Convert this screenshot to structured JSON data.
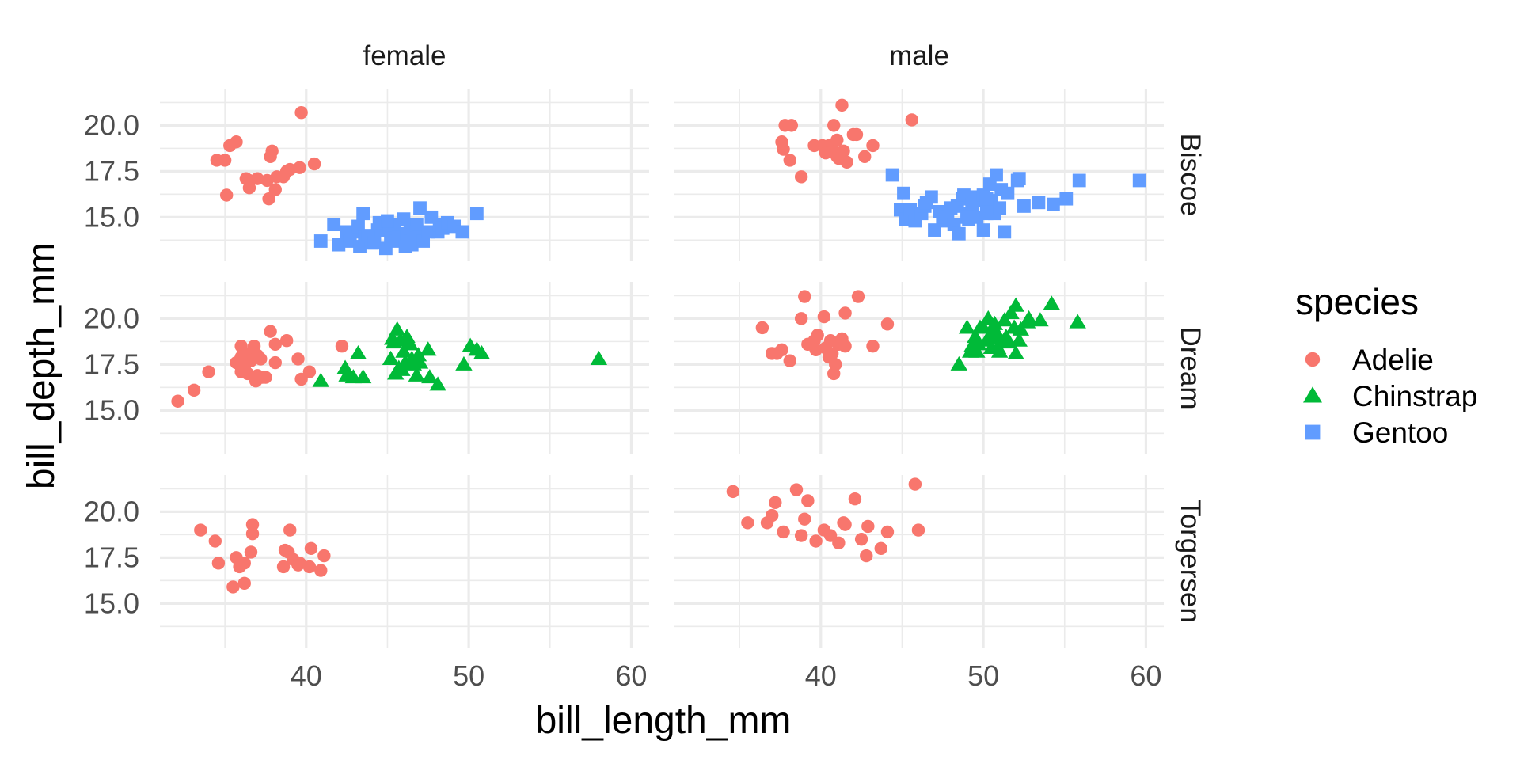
{
  "chart_data": {
    "type": "scatter",
    "xlabel": "bill_length_mm",
    "ylabel": "bill_depth_mm",
    "xlim": [
      31.0,
      61.1
    ],
    "ylim": [
      12.6,
      22.0
    ],
    "x_ticks": [
      40,
      50,
      60
    ],
    "y_ticks": [
      15.0,
      17.5,
      20.0
    ],
    "y_tick_labels": [
      "15.0",
      "17.5",
      "20.0"
    ],
    "column_facets": [
      "female",
      "male"
    ],
    "row_facets": [
      "Biscoe",
      "Dream",
      "Torgersen"
    ],
    "grid": true,
    "legend": {
      "title": "species",
      "placement": "right",
      "entries": [
        {
          "name": "Adelie",
          "color": "#F8766D",
          "shape": "circle"
        },
        {
          "name": "Chinstrap",
          "color": "#00BA38",
          "shape": "triangle"
        },
        {
          "name": "Gentoo",
          "color": "#619CFF",
          "shape": "square"
        }
      ]
    },
    "series": [
      {
        "species": "Adelie",
        "facet_col": "female",
        "facet_row": "Biscoe",
        "x": [
          35.0,
          35.3,
          35.7,
          36.3,
          36.5,
          36.5,
          37.0,
          37.6,
          37.7,
          37.8,
          37.9,
          38.1,
          38.2,
          38.6,
          38.8,
          39.0,
          39.6,
          39.7,
          40.5,
          34.5,
          35.1
        ],
        "y": [
          18.1,
          18.9,
          19.1,
          17.1,
          16.6,
          17.0,
          17.1,
          17.0,
          16.0,
          18.3,
          18.6,
          16.5,
          17.2,
          17.2,
          17.5,
          17.6,
          17.7,
          20.7,
          17.9,
          18.1,
          16.2
        ]
      },
      {
        "species": "Gentoo",
        "facet_col": "female",
        "facet_row": "Biscoe",
        "x": [
          40.9,
          41.7,
          42.0,
          42.5,
          42.7,
          42.8,
          43.2,
          43.3,
          43.5,
          43.6,
          44.0,
          44.4,
          44.5,
          44.9,
          45.1,
          45.2,
          45.3,
          45.4,
          45.5,
          45.7,
          46.1,
          46.2,
          46.4,
          46.5,
          46.6,
          46.8,
          46.9,
          47.2,
          47.5,
          47.7,
          48.1,
          48.2,
          48.4,
          48.7,
          49.1,
          49.6,
          50.5,
          43.8,
          44.2,
          45.0,
          46.0,
          47.0
        ],
        "y": [
          13.7,
          14.6,
          13.5,
          14.2,
          13.7,
          14.2,
          14.5,
          13.4,
          15.2,
          13.9,
          13.6,
          14.3,
          14.7,
          13.3,
          14.5,
          13.8,
          14.2,
          14.6,
          13.7,
          13.9,
          13.4,
          14.1,
          14.4,
          13.5,
          14.2,
          14.6,
          13.9,
          13.7,
          14.2,
          15.0,
          14.2,
          14.6,
          14.4,
          14.7,
          14.5,
          14.2,
          15.2,
          14.0,
          13.6,
          14.8,
          14.9,
          15.5
        ]
      },
      {
        "species": "Adelie",
        "facet_col": "female",
        "facet_row": "Dream",
        "x": [
          32.1,
          33.1,
          34.0,
          35.7,
          35.9,
          36.0,
          36.0,
          36.2,
          36.3,
          36.4,
          36.5,
          36.6,
          36.8,
          36.9,
          37.0,
          37.2,
          37.3,
          37.5,
          37.8,
          38.1,
          38.1,
          38.8,
          39.5,
          39.7,
          40.2,
          42.2,
          36.0,
          37.0
        ],
        "y": [
          15.5,
          16.1,
          17.1,
          17.6,
          17.5,
          18.5,
          17.1,
          17.3,
          18.1,
          17.0,
          18.0,
          17.7,
          18.5,
          16.6,
          16.9,
          17.8,
          16.8,
          16.8,
          19.3,
          18.6,
          17.6,
          18.8,
          17.8,
          16.7,
          17.1,
          18.5,
          17.9,
          18.0
        ]
      },
      {
        "species": "Chinstrap",
        "facet_col": "female",
        "facet_row": "Dream",
        "x": [
          40.9,
          42.4,
          42.5,
          42.9,
          43.2,
          43.5,
          45.2,
          45.4,
          45.5,
          45.6,
          45.7,
          45.8,
          45.9,
          46.0,
          46.1,
          46.4,
          46.5,
          46.6,
          46.8,
          46.9,
          47.0,
          47.5,
          47.6,
          48.1,
          49.7,
          50.1,
          50.5,
          50.8,
          58.0,
          46.2,
          45.3
        ],
        "y": [
          16.6,
          17.3,
          16.9,
          16.8,
          18.1,
          16.8,
          17.8,
          18.7,
          17.0,
          19.4,
          17.3,
          18.8,
          17.2,
          18.2,
          17.6,
          18.6,
          17.8,
          17.5,
          16.9,
          18.0,
          17.6,
          18.3,
          16.8,
          16.4,
          17.5,
          18.5,
          18.3,
          18.1,
          17.8,
          19.0,
          18.9
        ]
      },
      {
        "species": "Adelie",
        "facet_col": "female",
        "facet_row": "Torgersen",
        "x": [
          33.5,
          34.4,
          34.6,
          35.5,
          35.7,
          35.9,
          36.2,
          36.2,
          36.6,
          36.7,
          36.7,
          38.6,
          38.7,
          38.9,
          39.0,
          39.2,
          39.5,
          39.6,
          40.2,
          40.3,
          40.9,
          41.1
        ],
        "y": [
          19.0,
          18.4,
          17.2,
          15.9,
          17.5,
          17.0,
          16.1,
          17.2,
          17.8,
          18.8,
          19.3,
          17.0,
          17.9,
          17.8,
          19.0,
          17.4,
          17.1,
          17.2,
          17.0,
          18.0,
          16.8,
          17.6
        ]
      },
      {
        "species": "Adelie",
        "facet_col": "male",
        "facet_row": "Biscoe",
        "x": [
          37.6,
          37.7,
          37.8,
          38.2,
          38.1,
          38.8,
          39.6,
          40.1,
          40.5,
          40.6,
          40.7,
          40.8,
          41.0,
          41.1,
          41.3,
          41.4,
          41.6,
          42.0,
          42.2,
          42.7,
          43.2,
          45.6,
          41.0,
          40.3
        ],
        "y": [
          19.1,
          18.7,
          20.0,
          20.0,
          18.1,
          17.2,
          18.9,
          18.9,
          18.9,
          18.6,
          18.8,
          20.0,
          18.3,
          18.2,
          21.1,
          18.6,
          18.0,
          19.5,
          19.5,
          18.3,
          18.9,
          20.3,
          19.2,
          18.5
        ]
      },
      {
        "species": "Gentoo",
        "facet_col": "male",
        "facet_row": "Biscoe",
        "x": [
          44.4,
          44.9,
          45.1,
          45.2,
          45.5,
          45.8,
          46.2,
          46.4,
          46.8,
          47.3,
          47.5,
          47.8,
          48.2,
          48.4,
          48.5,
          48.7,
          48.8,
          49.0,
          49.1,
          49.3,
          49.5,
          49.6,
          49.8,
          50.0,
          50.0,
          50.2,
          50.4,
          50.5,
          50.7,
          50.8,
          51.1,
          51.3,
          51.5,
          52.1,
          52.2,
          52.5,
          53.4,
          54.3,
          55.1,
          55.9,
          59.6,
          46.5,
          47.0,
          48.0,
          49.0,
          50.2,
          51.0
        ],
        "y": [
          17.3,
          15.4,
          16.3,
          14.9,
          15.4,
          14.8,
          15.2,
          15.6,
          16.1,
          15.3,
          14.8,
          15.0,
          14.6,
          15.6,
          14.1,
          16.0,
          16.2,
          15.2,
          14.9,
          15.7,
          16.1,
          15.0,
          15.9,
          16.2,
          14.3,
          15.2,
          16.8,
          15.9,
          15.2,
          17.3,
          16.5,
          14.2,
          16.3,
          17.0,
          17.1,
          15.6,
          15.8,
          15.7,
          16.0,
          17.0,
          17.0,
          15.8,
          14.3,
          15.5,
          15.0,
          16.0,
          15.5
        ]
      },
      {
        "species": "Adelie",
        "facet_col": "male",
        "facet_row": "Dream",
        "x": [
          36.4,
          37.0,
          37.3,
          37.6,
          38.1,
          38.8,
          39.0,
          39.2,
          39.6,
          39.8,
          40.2,
          40.3,
          40.5,
          40.6,
          40.7,
          40.8,
          41.1,
          41.3,
          41.5,
          41.5,
          42.3,
          43.2,
          44.1,
          39.7,
          40.9
        ],
        "y": [
          19.5,
          18.1,
          18.1,
          18.3,
          17.7,
          20.0,
          21.2,
          18.6,
          18.8,
          19.1,
          20.1,
          18.4,
          17.9,
          18.8,
          18.1,
          17.0,
          18.6,
          18.9,
          18.5,
          20.3,
          21.2,
          18.5,
          19.7,
          18.3,
          17.5
        ]
      },
      {
        "species": "Chinstrap",
        "facet_col": "male",
        "facet_row": "Dream",
        "x": [
          48.5,
          49.0,
          49.2,
          49.5,
          49.6,
          49.7,
          49.8,
          50.0,
          50.2,
          50.3,
          50.4,
          50.5,
          50.6,
          50.7,
          50.8,
          50.9,
          51.0,
          51.3,
          51.4,
          51.5,
          51.7,
          51.9,
          52.0,
          52.0,
          52.2,
          52.7,
          52.8,
          53.5,
          54.2,
          55.8,
          49.3,
          50.9,
          52.3
        ],
        "y": [
          17.5,
          19.5,
          18.2,
          19.0,
          18.2,
          18.6,
          19.5,
          19.5,
          18.8,
          20.0,
          19.0,
          18.4,
          19.4,
          19.7,
          18.9,
          19.1,
          18.2,
          19.9,
          19.0,
          18.7,
          20.3,
          19.5,
          18.1,
          20.7,
          18.8,
          19.8,
          20.0,
          19.9,
          20.8,
          19.8,
          18.5,
          18.4,
          19.4
        ]
      },
      {
        "species": "Adelie",
        "facet_col": "male",
        "facet_row": "Torgersen",
        "x": [
          34.6,
          35.5,
          36.7,
          37.0,
          37.2,
          37.7,
          38.5,
          38.8,
          39.0,
          39.2,
          39.7,
          40.2,
          40.6,
          41.1,
          41.4,
          41.5,
          42.1,
          42.5,
          42.8,
          42.9,
          43.7,
          44.1,
          45.8,
          46.0
        ],
        "y": [
          21.1,
          19.4,
          19.4,
          19.8,
          20.5,
          18.9,
          21.2,
          18.7,
          19.6,
          20.6,
          18.4,
          19.0,
          18.7,
          18.3,
          19.4,
          19.3,
          20.7,
          18.5,
          17.6,
          19.2,
          18.0,
          18.9,
          21.5,
          19.0
        ]
      }
    ]
  }
}
